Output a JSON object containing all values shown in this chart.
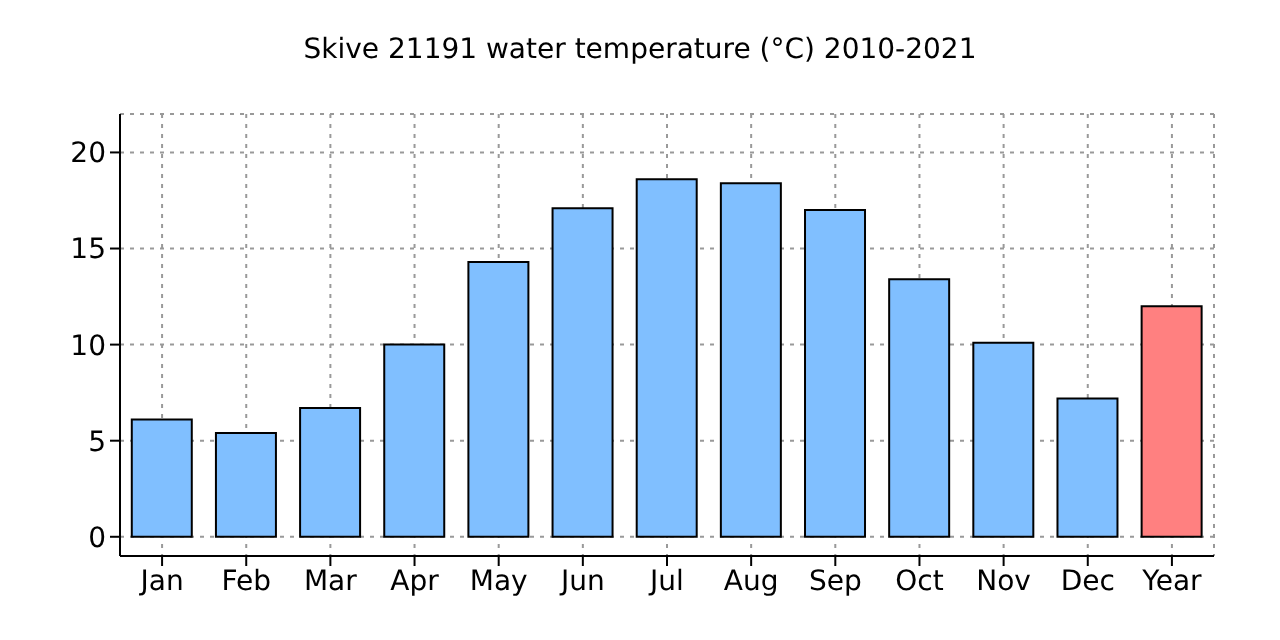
{
  "chart_data": {
    "type": "bar",
    "title": "Skive 21191 water temperature (°C) 2010-2021",
    "categories": [
      "Jan",
      "Feb",
      "Mar",
      "Apr",
      "May",
      "Jun",
      "Jul",
      "Aug",
      "Sep",
      "Oct",
      "Nov",
      "Dec",
      "Year"
    ],
    "values": [
      6.1,
      5.4,
      6.7,
      10.0,
      14.3,
      17.1,
      18.6,
      18.4,
      17.0,
      13.4,
      10.1,
      7.2,
      12.0
    ],
    "colors": [
      "#80bfff",
      "#80bfff",
      "#80bfff",
      "#80bfff",
      "#80bfff",
      "#80bfff",
      "#80bfff",
      "#80bfff",
      "#80bfff",
      "#80bfff",
      "#80bfff",
      "#80bfff",
      "#ff8080"
    ],
    "ylim": [
      -1,
      22
    ],
    "yticks": [
      0,
      5,
      10,
      15,
      20
    ],
    "grid": true
  }
}
